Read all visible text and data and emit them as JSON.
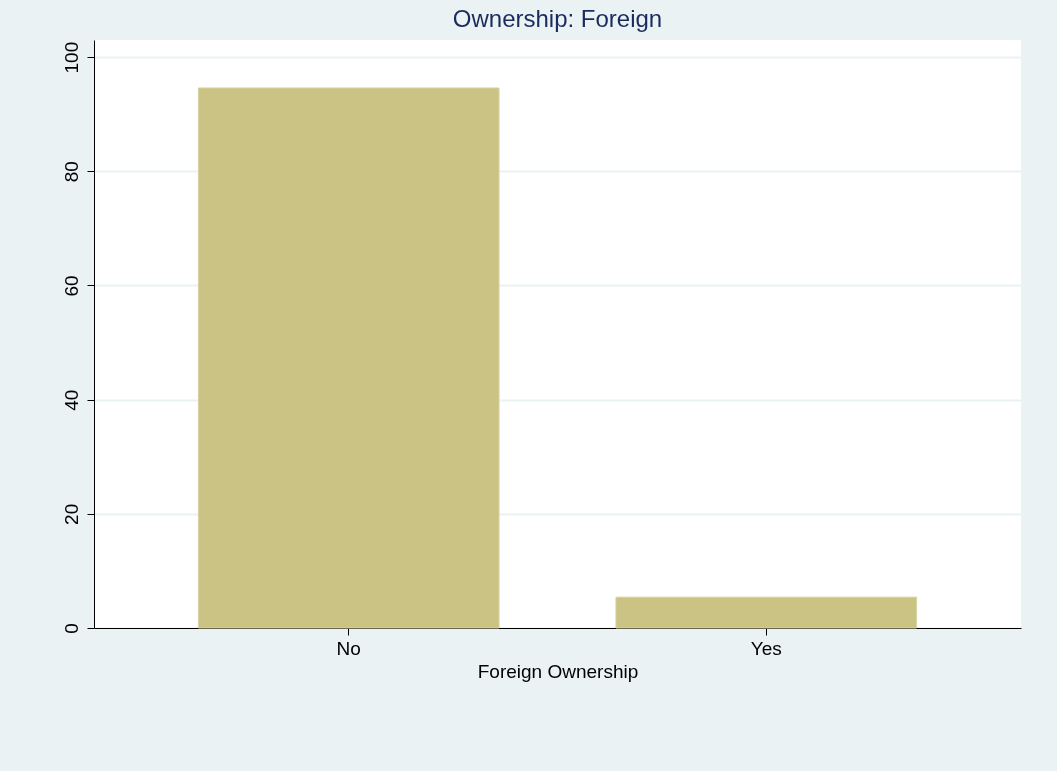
{
  "chart_data": {
    "type": "bar",
    "title": "Ownership: Foreign",
    "xlabel": "Foreign Ownership",
    "categories": [
      "No",
      "Yes"
    ],
    "values": [
      94.6,
      5.4
    ],
    "color": "#cbc383",
    "ylim": [
      0,
      103
    ],
    "yticks": [
      0,
      20,
      40,
      60,
      80,
      100
    ],
    "grid": "y"
  }
}
